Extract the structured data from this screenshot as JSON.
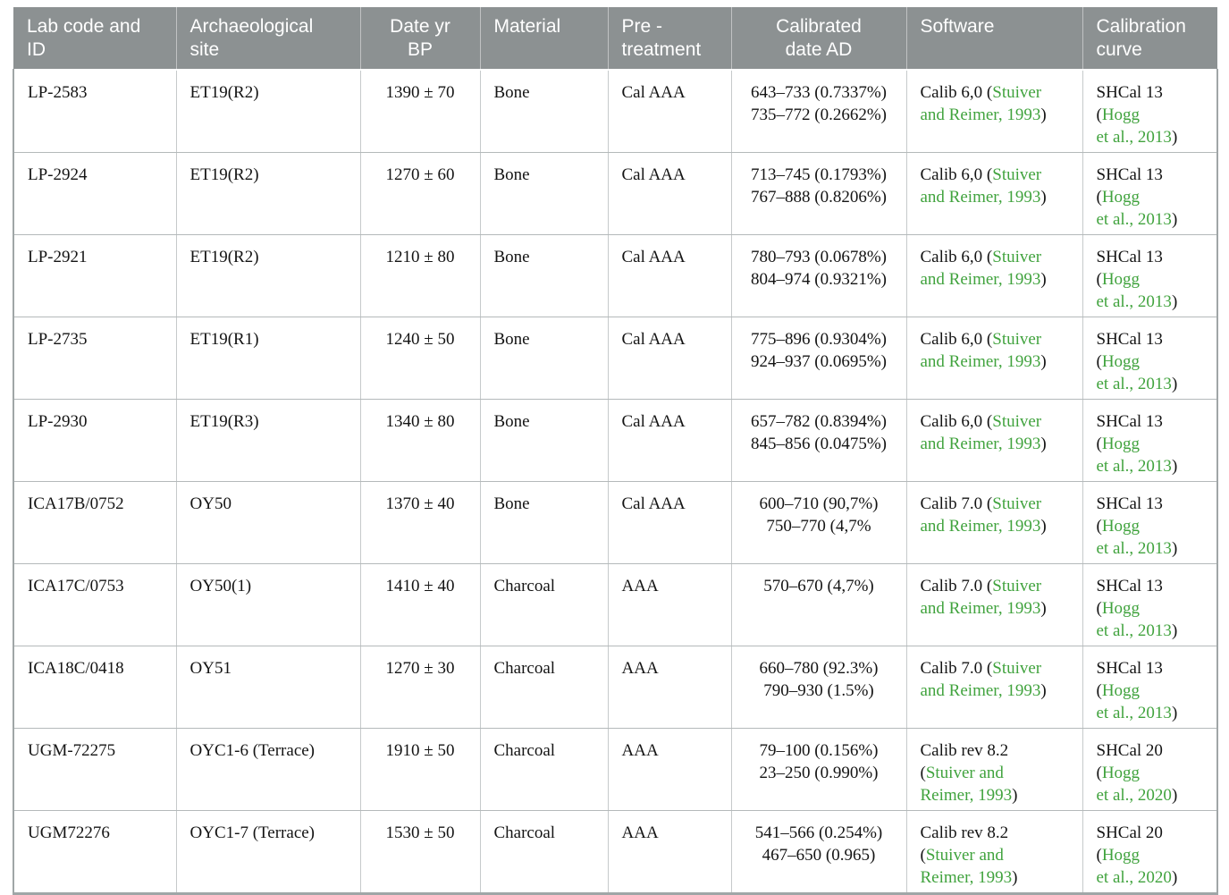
{
  "colors": {
    "header_bg": "#8c9192",
    "header_text": "#ffffff",
    "link_green": "#41a33e",
    "body_text": "#141414",
    "grid_line": "#c6cacb",
    "row_line": "#b4b9ba",
    "outer_border": "#a0a6a7",
    "page_bg": "#ffffff"
  },
  "table": {
    "columns": [
      {
        "id": "lab_code",
        "label": "Lab code and\nID",
        "align": "left"
      },
      {
        "id": "site",
        "label": "Archaeological\nsite",
        "align": "left"
      },
      {
        "id": "date_bp",
        "label": "Date yr\nBP",
        "align": "center"
      },
      {
        "id": "material",
        "label": "Material",
        "align": "left"
      },
      {
        "id": "pretreatment",
        "label": "Pre -\ntreatment",
        "align": "left"
      },
      {
        "id": "cal_date",
        "label": "Calibrated\ndate AD",
        "align": "center"
      },
      {
        "id": "software",
        "label": "Software",
        "align": "left"
      },
      {
        "id": "curve",
        "label": "Calibration\ncurve",
        "align": "left"
      }
    ],
    "rows": [
      {
        "cells": {
          "lab_code": "LP-2583",
          "site": "ET19(R2)",
          "date_bp": "1390 ± 70",
          "material": "Bone",
          "pretreatment": "Cal AAA",
          "cal_date": [
            "643–733 (0.7337%)",
            "735–772 (0.2662%)"
          ],
          "software": [
            [
              {
                "t": "Calib 6,0 ("
              },
              {
                "t": "Stuiver",
                "link": true
              }
            ],
            [
              {
                "t": "and Reimer, 1993",
                "link": true
              },
              {
                "t": ")"
              }
            ]
          ],
          "curve": [
            [
              {
                "t": "SHCal 13 ("
              },
              {
                "t": "Hogg",
                "link": true
              }
            ],
            [
              {
                "t": "et al., 2013",
                "link": true
              },
              {
                "t": ")"
              }
            ]
          ]
        }
      },
      {
        "cells": {
          "lab_code": "LP-2924",
          "site": "ET19(R2)",
          "date_bp": "1270 ± 60",
          "material": "Bone",
          "pretreatment": "Cal AAA",
          "cal_date": [
            "713–745 (0.1793%)",
            "767–888 (0.8206%)"
          ],
          "software": [
            [
              {
                "t": "Calib 6,0 ("
              },
              {
                "t": "Stuiver",
                "link": true
              }
            ],
            [
              {
                "t": "and Reimer, 1993",
                "link": true
              },
              {
                "t": ")"
              }
            ]
          ],
          "curve": [
            [
              {
                "t": "SHCal 13 ("
              },
              {
                "t": "Hogg",
                "link": true
              }
            ],
            [
              {
                "t": "et al., 2013",
                "link": true
              },
              {
                "t": ")"
              }
            ]
          ]
        }
      },
      {
        "cells": {
          "lab_code": "LP-2921",
          "site": "ET19(R2)",
          "date_bp": "1210 ± 80",
          "material": "Bone",
          "pretreatment": "Cal AAA",
          "cal_date": [
            "780–793 (0.0678%)",
            "804–974 (0.9321%)"
          ],
          "software": [
            [
              {
                "t": "Calib 6,0 ("
              },
              {
                "t": "Stuiver",
                "link": true
              }
            ],
            [
              {
                "t": "and Reimer, 1993",
                "link": true
              },
              {
                "t": ")"
              }
            ]
          ],
          "curve": [
            [
              {
                "t": "SHCal 13 ("
              },
              {
                "t": "Hogg",
                "link": true
              }
            ],
            [
              {
                "t": "et al., 2013",
                "link": true
              },
              {
                "t": ")"
              }
            ]
          ]
        }
      },
      {
        "cells": {
          "lab_code": "LP-2735",
          "site": "ET19(R1)",
          "date_bp": "1240 ± 50",
          "material": "Bone",
          "pretreatment": "Cal AAA",
          "cal_date": [
            "775–896 (0.9304%)",
            "924–937 (0.0695%)"
          ],
          "software": [
            [
              {
                "t": "Calib 6,0 ("
              },
              {
                "t": "Stuiver",
                "link": true
              }
            ],
            [
              {
                "t": "and Reimer, 1993",
                "link": true
              },
              {
                "t": ")"
              }
            ]
          ],
          "curve": [
            [
              {
                "t": "SHCal 13 ("
              },
              {
                "t": "Hogg",
                "link": true
              }
            ],
            [
              {
                "t": "et al., 2013",
                "link": true
              },
              {
                "t": ")"
              }
            ]
          ]
        }
      },
      {
        "cells": {
          "lab_code": "LP-2930",
          "site": "ET19(R3)",
          "date_bp": "1340 ± 80",
          "material": "Bone",
          "pretreatment": "Cal AAA",
          "cal_date": [
            "657–782 (0.8394%)",
            "845–856 (0.0475%)"
          ],
          "software": [
            [
              {
                "t": "Calib 6,0 ("
              },
              {
                "t": "Stuiver",
                "link": true
              }
            ],
            [
              {
                "t": "and Reimer, 1993",
                "link": true
              },
              {
                "t": ")"
              }
            ]
          ],
          "curve": [
            [
              {
                "t": "SHCal 13 ("
              },
              {
                "t": "Hogg",
                "link": true
              }
            ],
            [
              {
                "t": "et al., 2013",
                "link": true
              },
              {
                "t": ")"
              }
            ]
          ]
        }
      },
      {
        "cells": {
          "lab_code": "ICA17B/0752",
          "site": "OY50",
          "date_bp": "1370 ± 40",
          "material": "Bone",
          "pretreatment": "Cal AAA",
          "cal_date": [
            "600–710 (90,7%)",
            "750–770 (4,7%"
          ],
          "software": [
            [
              {
                "t": "Calib 7.0 ("
              },
              {
                "t": "Stuiver",
                "link": true
              }
            ],
            [
              {
                "t": "and Reimer, 1993",
                "link": true
              },
              {
                "t": ")"
              }
            ]
          ],
          "curve": [
            [
              {
                "t": "SHCal 13 ("
              },
              {
                "t": "Hogg",
                "link": true
              }
            ],
            [
              {
                "t": "et al., 2013",
                "link": true
              },
              {
                "t": ")"
              }
            ]
          ]
        }
      },
      {
        "cells": {
          "lab_code": "ICA17C/0753",
          "site": "OY50(1)",
          "date_bp": "1410 ± 40",
          "material": "Charcoal",
          "pretreatment": "AAA",
          "cal_date": [
            "570–670 (4,7%)"
          ],
          "software": [
            [
              {
                "t": "Calib 7.0 ("
              },
              {
                "t": "Stuiver",
                "link": true
              }
            ],
            [
              {
                "t": "and Reimer, 1993",
                "link": true
              },
              {
                "t": ")"
              }
            ]
          ],
          "curve": [
            [
              {
                "t": "SHCal 13 ("
              },
              {
                "t": "Hogg",
                "link": true
              }
            ],
            [
              {
                "t": "et al., 2013",
                "link": true
              },
              {
                "t": ")"
              }
            ]
          ]
        }
      },
      {
        "cells": {
          "lab_code": "ICA18C/0418",
          "site": "OY51",
          "date_bp": "1270 ± 30",
          "material": "Charcoal",
          "pretreatment": "AAA",
          "cal_date": [
            "660–780 (92.3%)",
            "790–930 (1.5%)"
          ],
          "software": [
            [
              {
                "t": "Calib 7.0 ("
              },
              {
                "t": "Stuiver",
                "link": true
              }
            ],
            [
              {
                "t": "and Reimer, 1993",
                "link": true
              },
              {
                "t": ")"
              }
            ]
          ],
          "curve": [
            [
              {
                "t": "SHCal 13 ("
              },
              {
                "t": "Hogg",
                "link": true
              }
            ],
            [
              {
                "t": "et al., 2013",
                "link": true
              },
              {
                "t": ")"
              }
            ]
          ]
        }
      },
      {
        "cells": {
          "lab_code": "UGM-72275",
          "site": "OYC1-6 (Terrace)",
          "date_bp": "1910 ± 50",
          "material": "Charcoal",
          "pretreatment": "AAA",
          "cal_date": [
            "79–100 (0.156%)",
            "23–250 (0.990%)"
          ],
          "software": [
            [
              {
                "t": "Calib rev 8.2"
              }
            ],
            [
              {
                "t": "("
              },
              {
                "t": "Stuiver and",
                "link": true
              }
            ],
            [
              {
                "t": "Reimer, 1993",
                "link": true
              },
              {
                "t": ")"
              }
            ]
          ],
          "curve": [
            [
              {
                "t": "SHCal 20 ("
              },
              {
                "t": "Hogg",
                "link": true
              }
            ],
            [
              {
                "t": "et al., 2020",
                "link": true
              },
              {
                "t": ")"
              }
            ]
          ]
        }
      },
      {
        "cells": {
          "lab_code": "UGM72276",
          "site": "OYC1-7 (Terrace)",
          "date_bp": "1530 ± 50",
          "material": "Charcoal",
          "pretreatment": "AAA",
          "cal_date": [
            "541–566 (0.254%)",
            "467–650 (0.965)"
          ],
          "software": [
            [
              {
                "t": "Calib rev 8.2"
              }
            ],
            [
              {
                "t": "("
              },
              {
                "t": "Stuiver and",
                "link": true
              }
            ],
            [
              {
                "t": "Reimer, 1993",
                "link": true
              },
              {
                "t": ")"
              }
            ]
          ],
          "curve": [
            [
              {
                "t": "SHCal 20 ("
              },
              {
                "t": "Hogg",
                "link": true
              }
            ],
            [
              {
                "t": "et al., 2020",
                "link": true
              },
              {
                "t": ")"
              }
            ]
          ]
        }
      }
    ]
  }
}
